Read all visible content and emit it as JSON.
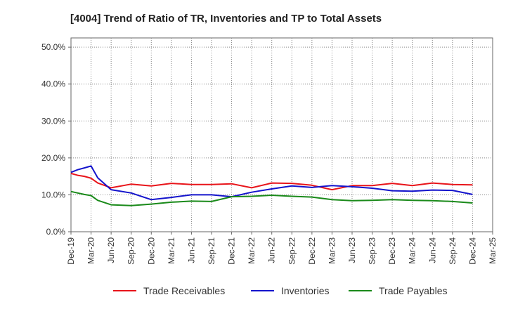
{
  "chart_data": {
    "type": "line",
    "title": "[4004]  Trend of Ratio of TR, Inventories and TP to Total Assets",
    "xlabel": "",
    "ylabel": "",
    "ylim": [
      0,
      52.5
    ],
    "y_ticks": [
      "0.0%",
      "10.0%",
      "20.0%",
      "30.0%",
      "40.0%",
      "50.0%"
    ],
    "y_tick_values": [
      0,
      10,
      20,
      30,
      40,
      50
    ],
    "x_ticks": [
      "Dec-19",
      "Mar-20",
      "Jun-20",
      "Sep-20",
      "Dec-20",
      "Mar-21",
      "Jun-21",
      "Sep-21",
      "Dec-21",
      "Mar-22",
      "Jun-22",
      "Sep-22",
      "Dec-22",
      "Mar-23",
      "Jun-23",
      "Sep-23",
      "Dec-23",
      "Mar-24",
      "Jun-24",
      "Sep-24",
      "Dec-24",
      "Mar-25"
    ],
    "grid": true,
    "legend_position": "bottom",
    "series": [
      {
        "name": "Trade Receivables",
        "color": "#e8141a",
        "x": [
          "Dec-19",
          "Jan-20",
          "Feb-20",
          "Mar-20",
          "Apr-20",
          "Jun-20",
          "Sep-20",
          "Dec-20",
          "Mar-21",
          "Jun-21",
          "Sep-21",
          "Dec-21",
          "Mar-22",
          "Jun-22",
          "Sep-22",
          "Dec-22",
          "Mar-23",
          "Jun-23",
          "Sep-23",
          "Dec-23",
          "Mar-24",
          "Jun-24",
          "Sep-24",
          "Dec-24"
        ],
        "values": [
          15.8,
          15.3,
          15.0,
          14.5,
          13.2,
          11.9,
          12.9,
          12.4,
          13.1,
          12.8,
          12.8,
          13.0,
          11.9,
          13.2,
          13.1,
          12.6,
          11.4,
          12.5,
          12.5,
          13.1,
          12.5,
          13.2,
          12.8,
          12.7
        ]
      },
      {
        "name": "Inventories",
        "color": "#1414cc",
        "x": [
          "Dec-19",
          "Jan-20",
          "Feb-20",
          "Mar-20",
          "Apr-20",
          "Jun-20",
          "Sep-20",
          "Dec-20",
          "Mar-21",
          "Jun-21",
          "Sep-21",
          "Dec-21",
          "Mar-22",
          "Jun-22",
          "Sep-22",
          "Dec-22",
          "Mar-23",
          "Jun-23",
          "Sep-23",
          "Dec-23",
          "Mar-24",
          "Jun-24",
          "Sep-24",
          "Dec-24"
        ],
        "values": [
          16.1,
          16.8,
          17.3,
          17.8,
          14.6,
          11.4,
          10.5,
          8.7,
          9.3,
          10.0,
          10.0,
          9.5,
          10.7,
          11.6,
          12.4,
          12.0,
          12.5,
          12.2,
          11.8,
          11.1,
          11.0,
          11.3,
          11.2,
          10.1
        ]
      },
      {
        "name": "Trade Payables",
        "color": "#1a8a1a",
        "x": [
          "Dec-19",
          "Jan-20",
          "Feb-20",
          "Mar-20",
          "Apr-20",
          "Jun-20",
          "Sep-20",
          "Dec-20",
          "Mar-21",
          "Jun-21",
          "Sep-21",
          "Dec-21",
          "Mar-22",
          "Jun-22",
          "Sep-22",
          "Dec-22",
          "Mar-23",
          "Jun-23",
          "Sep-23",
          "Dec-23",
          "Mar-24",
          "Jun-24",
          "Sep-24",
          "Dec-24"
        ],
        "values": [
          10.9,
          10.5,
          10.1,
          9.8,
          8.5,
          7.3,
          7.1,
          7.5,
          8.0,
          8.3,
          8.2,
          9.5,
          9.6,
          9.9,
          9.6,
          9.4,
          8.7,
          8.4,
          8.5,
          8.7,
          8.5,
          8.4,
          8.2,
          7.8
        ]
      }
    ]
  }
}
